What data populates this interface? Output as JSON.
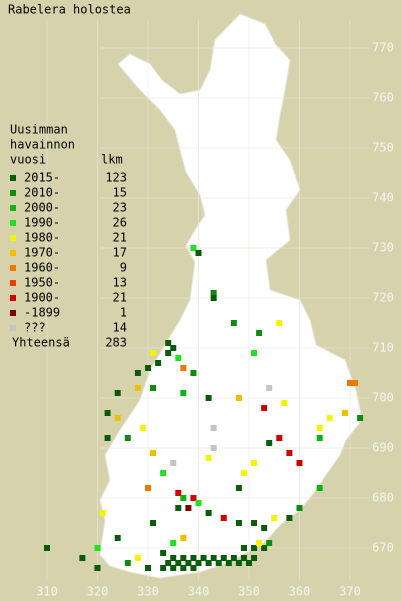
{
  "title": "Rabelera holostea",
  "legend": {
    "header": [
      "Uusimman",
      "havainnon",
      "vuosi"
    ],
    "count_header": "lkm",
    "rows": [
      {
        "label": "2015-",
        "count": 123,
        "color": "#0a5c0a"
      },
      {
        "label": "2010-",
        "count": 15,
        "color": "#118a11"
      },
      {
        "label": "2000-",
        "count": 23,
        "color": "#10b410"
      },
      {
        "label": "1990-",
        "count": 26,
        "color": "#22e022"
      },
      {
        "label": "1980-",
        "count": 21,
        "color": "#f4f400"
      },
      {
        "label": "1970-",
        "count": 17,
        "color": "#f0c000"
      },
      {
        "label": "1960-",
        "count": 9,
        "color": "#f07800"
      },
      {
        "label": "1950-",
        "count": 13,
        "color": "#f03c00"
      },
      {
        "label": "1900-",
        "count": 21,
        "color": "#d00000"
      },
      {
        "label": "-1899",
        "count": 1,
        "color": "#800000"
      },
      {
        "label": "???",
        "count": 14,
        "color": "#c4c4c4"
      }
    ],
    "total_label": "Yhteensä",
    "total": 283
  },
  "xticks": [
    310,
    320,
    330,
    340,
    350,
    360,
    370
  ],
  "yticks": [
    670,
    680,
    690,
    700,
    710,
    720,
    730,
    740,
    750,
    760,
    770
  ],
  "observations": [
    [
      339,
      730,
      3
    ],
    [
      340,
      729,
      0
    ],
    [
      343,
      721,
      1
    ],
    [
      343,
      720,
      0
    ],
    [
      347,
      715,
      1
    ],
    [
      356,
      715,
      4
    ],
    [
      352,
      713,
      1
    ],
    [
      351,
      709,
      3
    ],
    [
      334,
      711,
      0
    ],
    [
      335,
      710,
      0
    ],
    [
      334,
      709,
      0
    ],
    [
      331,
      709,
      4
    ],
    [
      332,
      707,
      0
    ],
    [
      330,
      706,
      0
    ],
    [
      328,
      705,
      0
    ],
    [
      336,
      708,
      3
    ],
    [
      337,
      706,
      6
    ],
    [
      339,
      705,
      1
    ],
    [
      324,
      701,
      0
    ],
    [
      322,
      697,
      0
    ],
    [
      328,
      702,
      5
    ],
    [
      331,
      702,
      1
    ],
    [
      337,
      701,
      2
    ],
    [
      342,
      700,
      0
    ],
    [
      348,
      700,
      5
    ],
    [
      354,
      702,
      10
    ],
    [
      353,
      698,
      8
    ],
    [
      357,
      699,
      4
    ],
    [
      370,
      703,
      6
    ],
    [
      371,
      703,
      6
    ],
    [
      372,
      696,
      1
    ],
    [
      369,
      697,
      5
    ],
    [
      366,
      696,
      4
    ],
    [
      364,
      694,
      4
    ],
    [
      364,
      692,
      2
    ],
    [
      356,
      692,
      8
    ],
    [
      354,
      691,
      0
    ],
    [
      358,
      689,
      8
    ],
    [
      360,
      687,
      8
    ],
    [
      351,
      687,
      4
    ],
    [
      349,
      685,
      4
    ],
    [
      348,
      682,
      0
    ],
    [
      343,
      694,
      10
    ],
    [
      343,
      690,
      10
    ],
    [
      342,
      688,
      4
    ],
    [
      335,
      687,
      10
    ],
    [
      333,
      685,
      3
    ],
    [
      330,
      682,
      6
    ],
    [
      329,
      694,
      4
    ],
    [
      324,
      696,
      5
    ],
    [
      322,
      692,
      0
    ],
    [
      326,
      692,
      1
    ],
    [
      331,
      689,
      5
    ],
    [
      336,
      681,
      8
    ],
    [
      337,
      680,
      2
    ],
    [
      339,
      680,
      8
    ],
    [
      336,
      678,
      0
    ],
    [
      338,
      678,
      9
    ],
    [
      340,
      679,
      3
    ],
    [
      342,
      677,
      0
    ],
    [
      345,
      676,
      8
    ],
    [
      348,
      675,
      0
    ],
    [
      351,
      675,
      0
    ],
    [
      353,
      674,
      0
    ],
    [
      355,
      676,
      4
    ],
    [
      358,
      676,
      0
    ],
    [
      360,
      678,
      1
    ],
    [
      364,
      682,
      2
    ],
    [
      331,
      675,
      0
    ],
    [
      321,
      677,
      4
    ],
    [
      324,
      672,
      0
    ],
    [
      320,
      670,
      3
    ],
    [
      310,
      670,
      0
    ],
    [
      317,
      668,
      0
    ],
    [
      320,
      666,
      0
    ],
    [
      326,
      667,
      1
    ],
    [
      328,
      668,
      4
    ],
    [
      330,
      666,
      0
    ],
    [
      333,
      669,
      0
    ],
    [
      335,
      671,
      3
    ],
    [
      337,
      672,
      5
    ],
    [
      334,
      667,
      0
    ],
    [
      336,
      667,
      0
    ],
    [
      338,
      667,
      0
    ],
    [
      340,
      667,
      0
    ],
    [
      342,
      667,
      0
    ],
    [
      344,
      667,
      0
    ],
    [
      346,
      667,
      0
    ],
    [
      348,
      667,
      0
    ],
    [
      350,
      667,
      0
    ],
    [
      335,
      668,
      0
    ],
    [
      337,
      668,
      0
    ],
    [
      339,
      668,
      0
    ],
    [
      341,
      668,
      0
    ],
    [
      343,
      668,
      0
    ],
    [
      345,
      668,
      0
    ],
    [
      347,
      668,
      0
    ],
    [
      349,
      668,
      0
    ],
    [
      351,
      668,
      0
    ],
    [
      333,
      666,
      0
    ],
    [
      335,
      666,
      0
    ],
    [
      337,
      666,
      0
    ],
    [
      339,
      666,
      0
    ],
    [
      349,
      670,
      0
    ],
    [
      351,
      670,
      0
    ],
    [
      353,
      670,
      0
    ],
    [
      352,
      671,
      4
    ],
    [
      354,
      671,
      1
    ]
  ]
}
